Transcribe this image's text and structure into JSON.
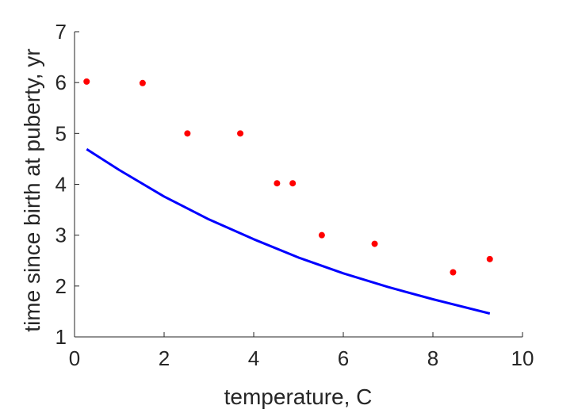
{
  "chart_data": {
    "type": "scatter",
    "title": "",
    "xlabel": "temperature, C",
    "ylabel": "time since birth at puberty, yr",
    "xlim": [
      0,
      10
    ],
    "ylim": [
      1,
      7
    ],
    "xticks": [
      0,
      2,
      4,
      6,
      8,
      10
    ],
    "yticks": [
      1,
      2,
      3,
      4,
      5,
      6,
      7
    ],
    "grid": false,
    "series": [
      {
        "kind": "scatter",
        "color": "#ff0000",
        "x": [
          0.27,
          1.52,
          2.52,
          3.7,
          4.52,
          4.87,
          5.52,
          6.7,
          8.45,
          9.27
        ],
        "y": [
          6.02,
          5.99,
          5.0,
          5.0,
          4.02,
          4.02,
          3.0,
          2.83,
          2.27,
          2.53
        ]
      },
      {
        "kind": "line",
        "color": "#0000ff",
        "x": [
          0.27,
          1.0,
          2.0,
          3.0,
          4.0,
          5.0,
          6.0,
          7.0,
          8.0,
          9.27
        ],
        "y": [
          4.69,
          4.28,
          3.76,
          3.31,
          2.92,
          2.56,
          2.25,
          1.98,
          1.74,
          1.46
        ]
      }
    ]
  }
}
